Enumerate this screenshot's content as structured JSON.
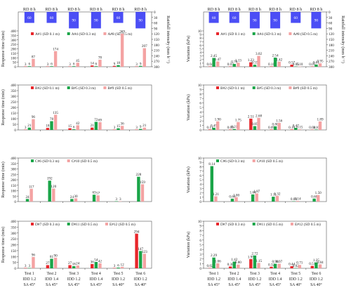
{
  "colors": {
    "s1": "#e8262b",
    "s2": "#1aa548",
    "s3": "#f4a3a3",
    "rain": "#4b4ef5"
  },
  "chart_data": [
    {
      "type": "bar",
      "panel": "left-1",
      "ylabel": "Response time (min)",
      "ylim": [
        0,
        400
      ],
      "yticks": [
        0,
        50,
        100,
        150,
        200,
        250,
        300,
        350,
        400
      ],
      "rain": {
        "label": "RD 8 h",
        "ylabel": "Rainfall intensity (mm h⁻¹)",
        "ylim": [
          0,
          300
        ],
        "yticks": [
          0,
          30,
          60,
          90,
          120,
          150,
          180,
          210,
          240,
          270,
          300
        ],
        "values": [
          60,
          60,
          90,
          90,
          60,
          90
        ]
      },
      "categories": [
        "Test 1",
        "Test 2",
        "Test 3",
        "Test 4",
        "Test 5",
        "Test 6"
      ],
      "legend": [
        {
          "name": "A#1 (SD 0.1 m)",
          "color": "#e8262b"
        },
        {
          "name": "A#4 (SD 0.3 m)",
          "color": "#1aa548"
        },
        {
          "name": "A#8 (SD 0.5 m)",
          "color": "#f4a3a3"
        }
      ],
      "series": [
        {
          "values": [
            3,
            3,
            3,
            14,
            9,
            3
          ],
          "labels": [
            "3",
            "3",
            "3",
            "14",
            "9",
            "3"
          ]
        },
        {
          "values": [
            6,
            6,
            6,
            6,
            18,
            9
          ],
          "labels": [
            "6",
            "6",
            "6",
            "6",
            "18",
            "9"
          ]
        },
        {
          "values": [
            87,
            174,
            45,
            78,
            369,
            207
          ],
          "labels": [
            "87",
            "174",
            "45",
            "78",
            "369",
            "207"
          ]
        }
      ]
    },
    {
      "type": "bar",
      "panel": "left-2",
      "ylabel": "Response time (min)",
      "ylim": [
        0,
        400
      ],
      "yticks": [
        0,
        50,
        100,
        150,
        200,
        250,
        300,
        350,
        400
      ],
      "categories": [
        "Test 1",
        "Test 2",
        "Test 3",
        "Test 4",
        "Test 5",
        "Test 6"
      ],
      "legend": [
        {
          "name": "B#2 (SD 0.1 m)",
          "color": "#e8262b"
        },
        {
          "name": "B#5 (SD 0.3 m)",
          "color": "#1aa548"
        },
        {
          "name": "B#9 (SD 0.5 m)",
          "color": "#f4a3a3"
        }
      ],
      "series": [
        {
          "values": [
            3,
            18,
            15,
            21,
            3,
            3
          ],
          "labels": [
            "3",
            "18",
            "15",
            "21",
            "3",
            "3"
          ]
        },
        {
          "values": [
            21,
            78,
            6,
            72,
            15,
            9
          ],
          "labels": [
            "21",
            "78",
            "6",
            "72",
            "15",
            "9"
          ]
        },
        {
          "values": [
            96,
            135,
            42,
            69,
            36,
            21
          ],
          "labels": [
            "96",
            "135",
            "42",
            "69",
            "36",
            "21"
          ]
        }
      ]
    },
    {
      "type": "bar",
      "panel": "left-3",
      "ylabel": "Response time (min)",
      "ylim": [
        0,
        400
      ],
      "yticks": [
        0,
        50,
        100,
        150,
        200,
        250,
        300,
        350,
        400
      ],
      "categories": [
        "Test 1",
        "Test 2",
        "Test 3",
        "Test 4",
        "Test 5",
        "Test 6"
      ],
      "legend": [
        {
          "name": "C#6 (SD 0.3 m)",
          "color": "#1aa548"
        },
        {
          "name": "C#10 (SD 0.5 m)",
          "color": "#f4a3a3"
        }
      ],
      "series": [
        {
          "values": [
            24,
            192,
            24,
            63,
            3,
            228
          ],
          "labels": [
            "24",
            "192",
            "24",
            "63",
            "3",
            "228"
          ]
        },
        {
          "values": [
            117,
            120,
            30,
            57,
            3,
            159
          ],
          "labels": [
            "117",
            "120",
            "30",
            "57",
            "3",
            "159"
          ]
        }
      ],
      "series_colors": [
        "#1aa548",
        "#f4a3a3"
      ]
    },
    {
      "type": "bar",
      "panel": "left-4",
      "ylabel": "Response time (min)",
      "ylim": [
        0,
        400
      ],
      "yticks": [
        0,
        50,
        100,
        150,
        200,
        250,
        300,
        350,
        400
      ],
      "categories": [
        "Test 1",
        "Test 2",
        "Test 3",
        "Test 4",
        "Test 5",
        "Test 6"
      ],
      "xlabels": [
        [
          "Test 1",
          "IDD 1.2",
          "SA 45°"
        ],
        [
          "Test 2",
          "IDD 1.4",
          "SA 45°"
        ],
        [
          "Test 3",
          "IDD 1.2",
          "SA 45°"
        ],
        [
          "Test 4",
          "IDD 1.4",
          "SA 45°"
        ],
        [
          "Test 5",
          "IDD 1.2",
          "SA 40°"
        ],
        [
          "Test 6",
          "IDD 1.2",
          "SA 40°"
        ]
      ],
      "legend": [
        {
          "name": "D#7 (SD 0.3 m)",
          "color": "#e8262b"
        },
        {
          "name": "D#11 (SD 0.5 m)",
          "color": "#1aa548"
        },
        {
          "name": "E#12 (SD 0.5 m)",
          "color": "#f4a3a3"
        }
      ],
      "series": [
        {
          "values": [
            3,
            27,
            27,
            36,
            3,
            294
          ],
          "labels": [
            "3",
            "27",
            "27",
            "36",
            "3",
            "294"
          ]
        },
        {
          "values": [
            3,
            81,
            18,
            54,
            6,
            147
          ],
          "labels": [
            "3",
            "81",
            "18",
            "54",
            "6",
            "147"
          ]
        },
        {
          "values": [
            96,
            90,
            24,
            42,
            12,
            123
          ],
          "labels": [
            "96",
            "90",
            "24",
            "42",
            "12",
            "123"
          ]
        }
      ]
    },
    {
      "type": "bar",
      "panel": "right-1",
      "ylabel": "Variation (kPa)",
      "ylim": [
        0,
        10
      ],
      "yticks": [
        0,
        1,
        2,
        3,
        4,
        5,
        6,
        7,
        8,
        9,
        10
      ],
      "rain": {
        "label": "RD 8 h",
        "ylabel": "Rainfall intensity (mm h⁻¹)",
        "ylim": [
          0,
          300
        ],
        "yticks": [
          0,
          30,
          60,
          90,
          120,
          150,
          180,
          210,
          240,
          270,
          300
        ],
        "values": [
          60,
          60,
          90,
          90,
          60,
          90
        ]
      },
      "categories": [
        "Test 1",
        "Test 2",
        "Test 3",
        "Test 4",
        "Test 5",
        "Test 6"
      ],
      "legend": [
        {
          "name": "A#1 (SD 0.1 m)",
          "color": "#e8262b"
        },
        {
          "name": "A#4 (SD 0.3 m)",
          "color": "#1aa548"
        },
        {
          "name": "A#8 (SD 0.5 m)",
          "color": "#f4a3a3"
        }
      ],
      "series": [
        {
          "values": [
            0.04,
            0.03,
            1.23,
            0.11,
            0.57,
            0.05
          ],
          "labels": [
            "0.04",
            "0.03",
            "1.23",
            "0.11",
            "0.57",
            "0.05"
          ]
        },
        {
          "values": [
            2.45,
            0.78,
            0.55,
            2.54,
            0.05,
            0.61
          ],
          "labels": [
            "2.45",
            "0.78",
            "0.55",
            "2.54",
            "0.05",
            "0.61"
          ]
        },
        {
          "values": [
            1.47,
            1.13,
            3.02,
            1.42,
            0.1,
            0.95
          ],
          "labels": [
            "1.47",
            "1.13",
            "3.02",
            "1.42",
            "0.10",
            "0.95"
          ]
        }
      ]
    },
    {
      "type": "bar",
      "panel": "right-2",
      "ylabel": "Variation (kPa)",
      "ylim": [
        0,
        10
      ],
      "yticks": [
        0,
        1,
        2,
        3,
        4,
        5,
        6,
        7,
        8,
        9,
        10
      ],
      "categories": [
        "Test 1",
        "Test 2",
        "Test 3",
        "Test 4",
        "Test 5",
        "Test 6"
      ],
      "legend": [
        {
          "name": "B#2 (SD 0.1 m)",
          "color": "#e8262b"
        },
        {
          "name": "B#5 (SD 0.3 m)",
          "color": "#1aa548"
        },
        {
          "name": "B#9 (SD 0.5 m)",
          "color": "#f4a3a3"
        }
      ],
      "series": [
        {
          "values": [
            0.11,
            0.09,
            2.51,
            0.09,
            0.1,
            0.04
          ],
          "labels": [
            "0.11",
            "0.09",
            "2.51",
            "0.09",
            "0.10",
            "0.04"
          ]
        },
        {
          "values": [
            0.49,
            0.21,
            0.85,
            0.8,
            0.47,
            0.1
          ],
          "labels": [
            "0.49",
            "0.21",
            "0.85",
            "0.80",
            "0.47",
            "0.10"
          ]
        },
        {
          "values": [
            1.9,
            1.75,
            2.68,
            1.56,
            0.15,
            1.89
          ],
          "labels": [
            "1.90",
            "1.75",
            "2.68",
            "1.56",
            "0.15",
            "1.89"
          ]
        }
      ]
    },
    {
      "type": "bar",
      "panel": "right-3",
      "ylabel": "Variation (kPa)",
      "ylim": [
        0,
        10
      ],
      "yticks": [
        0,
        1,
        2,
        3,
        4,
        5,
        6,
        7,
        8,
        9,
        10
      ],
      "categories": [
        "Test 1",
        "Test 2",
        "Test 3",
        "Test 4",
        "Test 5",
        "Test 6"
      ],
      "legend": [
        {
          "name": "C#6 (SD 0.3 m)",
          "color": "#1aa548"
        },
        {
          "name": "C#10 (SD 0.5 m)",
          "color": "#f4a3a3"
        }
      ],
      "series": [
        {
          "values": [
            8.14,
            0.66,
            1.64,
            1.11,
            0.04,
            0.68
          ],
          "labels": [
            "8.14",
            "0.66",
            "1.64",
            "1.11",
            "0.04",
            "0.68"
          ]
        },
        {
          "values": [
            1.21,
            1.0,
            1.87,
            1.32,
            0.14,
            1.5
          ],
          "labels": [
            "1.21",
            "1.00",
            "1.87",
            "1.32",
            "0.14",
            "1.50"
          ]
        }
      ],
      "series_colors": [
        "#1aa548",
        "#f4a3a3"
      ]
    },
    {
      "type": "bar",
      "panel": "right-4",
      "ylabel": "Variation (kPa)",
      "ylim": [
        0,
        10
      ],
      "yticks": [
        0,
        1,
        2,
        3,
        4,
        5,
        6,
        7,
        8,
        9,
        10
      ],
      "categories": [
        "Test 1",
        "Test 2",
        "Test 3",
        "Test 4",
        "Test 5",
        "Test 6"
      ],
      "xlabels": [
        [
          "Test 1",
          "IDD 1.2",
          "SA 45°"
        ],
        [
          "Test 2",
          "IDD 1.4",
          "SA 45°"
        ],
        [
          "Test 3",
          "IDD 1.2",
          "SA 45°"
        ],
        [
          "Test 4",
          "IDD 1.4",
          "SA 45°"
        ],
        [
          "Test 5",
          "IDD 1.2",
          "SA 40°"
        ],
        [
          "Test 6",
          "IDD 1.2",
          "SA 40°"
        ]
      ],
      "legend": [
        {
          "name": "D#7 (SD 0.3 m)",
          "color": "#e8262b"
        },
        {
          "name": "D#11 (SD 0.5 m)",
          "color": "#1aa548"
        },
        {
          "name": "E#12 (SD 0.5 m)",
          "color": "#f4a3a3"
        }
      ],
      "series": [
        {
          "values": [
            0.02,
            0.38,
            1.95,
            0.32,
            0.44,
            0.51
          ],
          "labels": [
            "0.02",
            "0.38",
            "1.95",
            "0.32",
            "0.44",
            "0.51"
          ]
        },
        {
          "values": [
            2.29,
            1.42,
            2.72,
            0.96,
            0.02,
            1.25
          ],
          "labels": [
            "2.29",
            "1.42",
            "2.72",
            "0.96",
            "0.02",
            "1.25"
          ]
        },
        {
          "values": [
            1.06,
            0.8,
            1.15,
            0.97,
            0.71,
            0.84
          ],
          "labels": [
            "1.06",
            "0.80",
            "1.15",
            "0.97",
            "0.71",
            "0.84"
          ]
        }
      ]
    }
  ]
}
